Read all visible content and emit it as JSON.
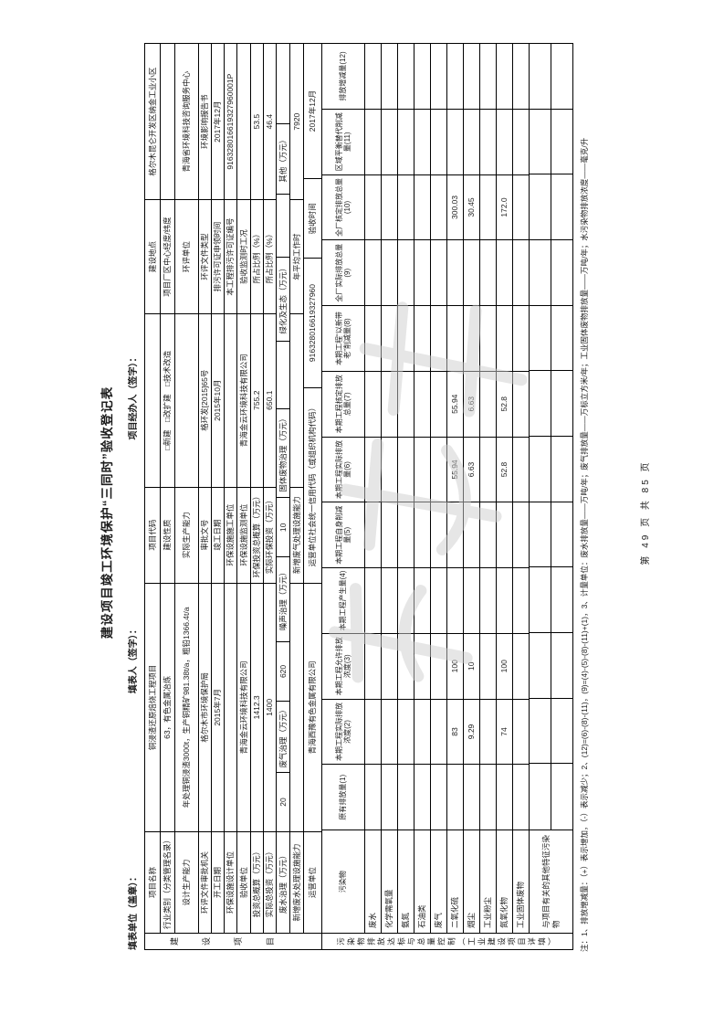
{
  "page": {
    "title": "建设项目竣工环境保护“三同时”验收登记表",
    "fill_unit_label": "填表单位（盖章）：",
    "fill_person_label": "填表人（签字）：",
    "handler_label": "项目经办人（签字）：",
    "note": "注：1、排放增减量：（+）表示增加，（-）表示减少；2、(12)=(6)-(8)-(11)，(9)=(4)-(5)-(8)-(11)+(1)，3、计量单位：废水排放量——万吨/年；废气排放量——万标立方米/年；工业固体废物排放量——万吨/年；水污染物排放浓度——毫克/升",
    "footer": "第 49 页 共 85 页"
  },
  "info": {
    "band": "建设项目",
    "rows": [
      [
        "项目名称",
        "铜浸渣还原焙烧工程项目",
        "项目代码",
        "",
        "建设地点",
        "格尔木昆仑开发区纳金工业小区"
      ],
      [
        "行业类别（分类管理名录）",
        "63，有色金属冶炼",
        "建设性质",
        "□新建　□改扩建　□技术改造",
        "项目厂区中心经度/纬度",
        ""
      ],
      [
        "设计生产能力",
        "年处理铜浸渣3000t，生产铜精矿981.38t/a，粗铅1366.4t/a",
        "实际生产能力",
        "",
        "环评单位",
        "青海省环境科技咨询服务中心"
      ],
      [
        "环评文件审批机关",
        "格尔木市环境保护局",
        "审批文号",
        "格环发[2015]65号",
        "环评文件类型",
        "环境影响报告书"
      ],
      [
        "开工日期",
        "2015年7月",
        "竣工日期",
        "2015年10月",
        "排污许可证申领时间",
        "2017年12月"
      ],
      [
        "环保设施设计单位",
        "",
        "环保设施施工单位",
        "",
        "本工程排污许可证编号",
        "916328016619327960001P"
      ],
      [
        "验收单位",
        "青海金云环境科技有限公司",
        "环保设施监测单位",
        "青海金云环境科技有限公司",
        "验收监测时工况",
        ""
      ],
      [
        "投资总概算（万元）",
        "1412.3",
        "环保投资总概算（万元）",
        "755.2",
        "所占比例（%）",
        "53.5"
      ],
      [
        "实际总投资（万元）",
        "1400",
        "实际环保投资（万元）",
        "650.1",
        "所占比例（%）",
        "46.4"
      ],
      [
        "废水治理（万元）",
        "20",
        "废气治理（万元）",
        "620",
        "噪声治理（万元）",
        "10",
        "固体废物治理（万元）",
        "",
        "绿化及生态（万元）",
        "",
        "其他（万元）",
        ""
      ],
      [
        "新增废水处理设施能力",
        "",
        "新增废气处理设施能力",
        "",
        "年平均工作时",
        "7920"
      ],
      [
        "运营单位",
        "青海西豫有色金属有限公司",
        "运营单位社会统一信用代码（或组织机构代码）",
        "916328016619327960",
        "验收时间",
        "2017年12月"
      ]
    ]
  },
  "pollution": {
    "band": "污染物排放达标与总量控制（工业建设项目详填）",
    "name_header": "污染物",
    "headers": [
      "原有排放量(1)",
      "本期工程实际排放浓度(2)",
      "本期工程允许排放浓度(3)",
      "本期工程产生量(4)",
      "本期工程自身削减量(5)",
      "本期工程实际排放量(6)",
      "本期工程核定排放总量(7)",
      "本期工程“以新带老”削减量(8)",
      "全厂实际排放总量(9)",
      "全厂核定排放总量(10)",
      "区域平衡替代削减量(11)",
      "排放增减量(12)"
    ],
    "rows": [
      {
        "name": "废水",
        "values": [
          "",
          "",
          "",
          "",
          "",
          "",
          "",
          "",
          "",
          "",
          "",
          ""
        ]
      },
      {
        "name": "化学需氧量",
        "values": [
          "",
          "",
          "",
          "",
          "",
          "",
          "",
          "",
          "",
          "",
          "",
          ""
        ]
      },
      {
        "name": "氨氮",
        "values": [
          "",
          "",
          "",
          "",
          "",
          "",
          "",
          "",
          "",
          "",
          "",
          ""
        ]
      },
      {
        "name": "石油类",
        "values": [
          "",
          "",
          "",
          "",
          "",
          "",
          "",
          "",
          "",
          "",
          "",
          ""
        ]
      },
      {
        "name": "废气",
        "values": [
          "",
          "",
          "",
          "",
          "",
          "",
          "",
          "",
          "",
          "",
          "",
          ""
        ]
      },
      {
        "name": "二氧化硫",
        "values": [
          "",
          "83",
          "100",
          "",
          "",
          "55.94",
          "55.94",
          "",
          "",
          "300.03",
          "",
          ""
        ]
      },
      {
        "name": "烟尘",
        "values": [
          "",
          "9.29",
          "10",
          "",
          "",
          "6.63",
          "6.63",
          "",
          "",
          "30.45",
          "",
          ""
        ]
      },
      {
        "name": "工业粉尘",
        "values": [
          "",
          "",
          "",
          "",
          "",
          "",
          "",
          "",
          "",
          "",
          "",
          ""
        ]
      },
      {
        "name": "氮氧化物",
        "values": [
          "",
          "74",
          "100",
          "",
          "",
          "52.8",
          "52.8",
          "",
          "",
          "172.0",
          "",
          ""
        ]
      },
      {
        "name": "工业固体废物",
        "values": [
          "",
          "",
          "",
          "",
          "",
          "",
          "",
          "",
          "",
          "",
          "",
          ""
        ]
      }
    ],
    "other_row": {
      "name": "与项目有关的其他特征污染物",
      "sub": [
        [
          "",
          "",
          "",
          "",
          "",
          "",
          "",
          "",
          "",
          "",
          "",
          ""
        ],
        [
          "",
          "",
          "",
          "",
          "",
          "",
          "",
          "",
          "",
          "",
          "",
          ""
        ]
      ]
    }
  }
}
